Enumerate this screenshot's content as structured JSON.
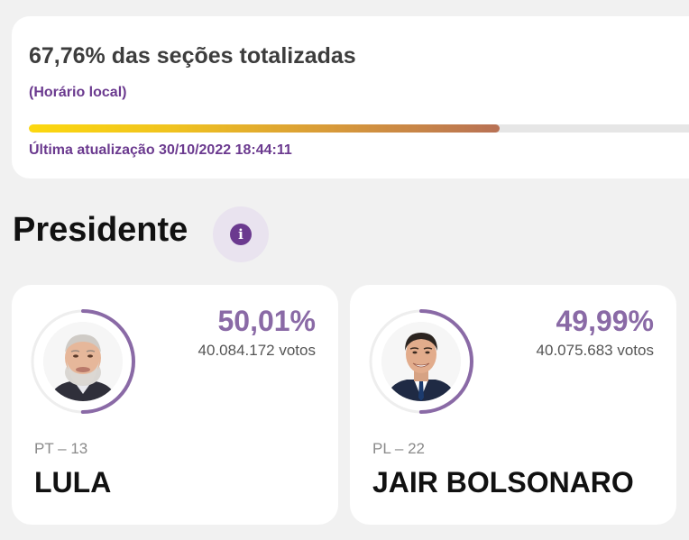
{
  "progress": {
    "title": "67,76% das seções totalizadas",
    "percent": 67.76,
    "local_time_label": "(Horário local)",
    "updated": "Última atualização 30/10/2022 18:44:11"
  },
  "section": {
    "title": "Presidente",
    "info_icon": "info-icon"
  },
  "candidates": [
    {
      "percent_label": "50,01%",
      "percent": 50.01,
      "votes": "40.084.172 votos",
      "party": "PT – 13",
      "name": "LULA"
    },
    {
      "percent_label": "49,99%",
      "percent": 49.99,
      "votes": "40.075.683 votos",
      "party": "PL – 22",
      "name": "JAIR BOLSONARO"
    }
  ],
  "colors": {
    "accent": "#6b3a8f",
    "ring": "#8a6aa6",
    "bar_start": "#fcd80f",
    "bar_end": "#b87155"
  }
}
